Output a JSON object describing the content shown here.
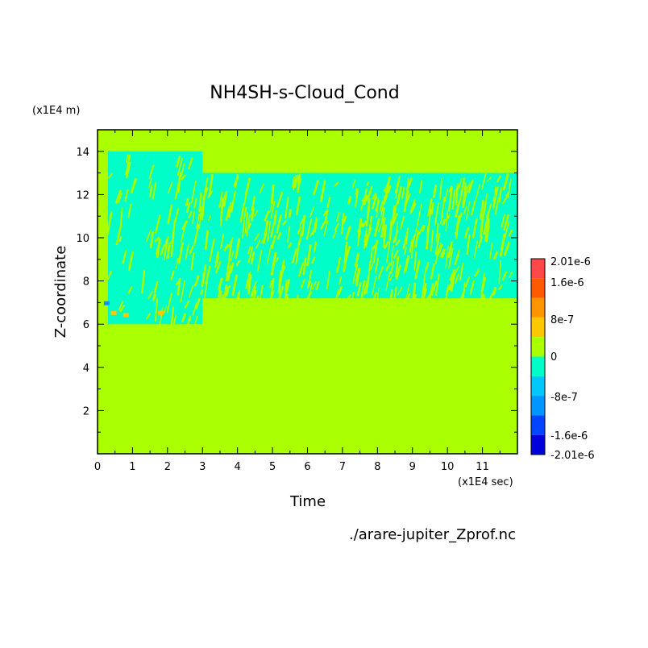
{
  "chart_data": {
    "type": "heatmap",
    "title": "NH4SH-s-Cloud_Cond",
    "xlabel": "Time",
    "ylabel": "Z-coordinate",
    "x_unit": "(x1E4 sec)",
    "y_unit": "(x1E4 m)",
    "source_file": "./arare-jupiter_Zprof.nc",
    "xlim": [
      0,
      12
    ],
    "ylim": [
      0,
      15
    ],
    "x_ticks": [
      0,
      1,
      2,
      3,
      4,
      5,
      6,
      7,
      8,
      9,
      10,
      11
    ],
    "y_ticks": [
      2,
      4,
      6,
      8,
      10,
      12,
      14
    ],
    "colorbar": {
      "labels": [
        "2.01e-6",
        "1.6e-6",
        "8e-7",
        "0",
        "-8e-7",
        "-1.6e-6",
        "-2.01e-6"
      ],
      "levels": [
        {
          "from": "1.6e-6",
          "to": "2.01e-6",
          "color": "#ff4848"
        },
        {
          "from": "1.2e-6",
          "to": "1.6e-6",
          "color": "#ff5a00"
        },
        {
          "from": "8e-7",
          "to": "1.2e-6",
          "color": "#ff9600"
        },
        {
          "from": "4e-7",
          "to": "8e-7",
          "color": "#ffc800"
        },
        {
          "from": "0",
          "to": "4e-7",
          "color": "#aaff00"
        },
        {
          "from": "-4e-7",
          "to": "0",
          "color": "#00ffc8"
        },
        {
          "from": "-8e-7",
          "to": "-4e-7",
          "color": "#00c8ff"
        },
        {
          "from": "-1.2e-6",
          "to": "-8e-7",
          "color": "#0096ff"
        },
        {
          "from": "-1.6e-6",
          "to": "-1.2e-6",
          "color": "#0046ff"
        },
        {
          "from": "-2.01e-6",
          "to": "-1.6e-6",
          "color": "#0000dc"
        }
      ]
    },
    "background_level_color": "#aaff00",
    "regions": [
      {
        "level": "-4e-7..0",
        "color": "#00ffc8",
        "x": [
          0.3,
          3.0
        ],
        "y": [
          6.0,
          14.0
        ]
      },
      {
        "level": "-4e-7..0",
        "color": "#00ffc8",
        "x": [
          3.0,
          12.0
        ],
        "y": [
          7.2,
          13.0
        ]
      }
    ]
  }
}
